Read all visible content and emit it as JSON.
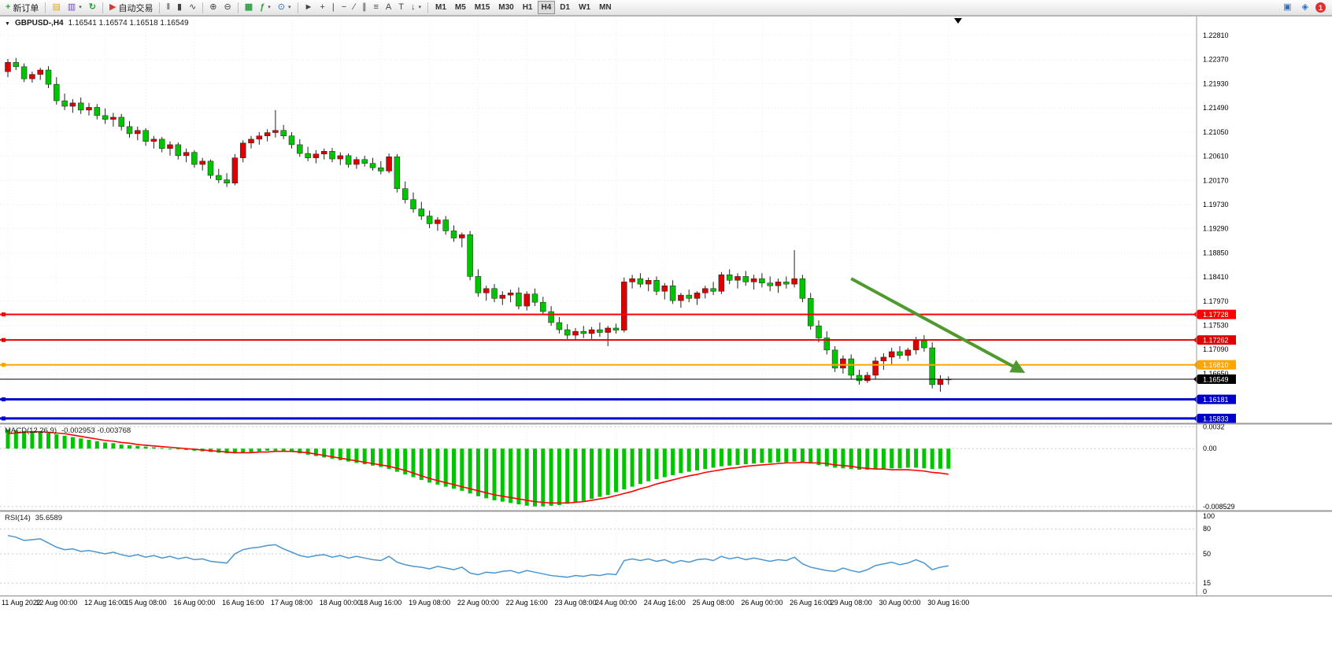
{
  "toolbar": {
    "new_order": "新订单",
    "autotrade": "自动交易",
    "timeframes": [
      "M1",
      "M5",
      "M15",
      "M30",
      "H1",
      "H4",
      "D1",
      "W1",
      "MN"
    ],
    "active_timeframe": "H4",
    "notification_count": "1"
  },
  "icons": {
    "chevron_down": "▾",
    "new_order": "+",
    "charts": "▤",
    "profiles": "▥",
    "refresh": "↻",
    "autotrade_play": "▶",
    "bar_chart": "‖",
    "candlestick": "▮",
    "line_chart": "∿",
    "zoom_in": "⊕",
    "zoom_out": "⊖",
    "tile_windows": "▦",
    "indicators": "ƒ",
    "clock": "⊙",
    "cursor": "►",
    "crosshair": "+",
    "vertical_line": "|",
    "horizontal_line": "−",
    "trendline": "∕",
    "channel": "∥",
    "fibonacci": "≡",
    "text": "A",
    "text_label": "T",
    "arrow_tool": "↓",
    "news": "▣",
    "community": "◈",
    "symbol_dropdown": "▼"
  },
  "chart_header": {
    "symbol": "GBPUSD-,H4",
    "ohlc": "1.16541 1.16574 1.16518 1.16549"
  },
  "macd_header": {
    "label": "MACD(12,26,9)",
    "values": "-0.002953 -0.003768"
  },
  "rsi_header": {
    "label": "RSI(14)",
    "value": "35.6589"
  },
  "chart_data": {
    "type": "candlestick",
    "title": "GBPUSD-,H4",
    "ohlc_display": [
      1.16541,
      1.16574,
      1.16518,
      1.16549
    ],
    "ylim": [
      1.1576,
      1.2314
    ],
    "price_axis_labels": [
      "1.22810",
      "1.22370",
      "1.21930",
      "1.21490",
      "1.21050",
      "1.20610",
      "1.20170",
      "1.19730",
      "1.19290",
      "1.18850",
      "1.18410",
      "1.17970",
      "1.17530",
      "1.17090",
      "1.16650"
    ],
    "time_labels": [
      "11 Aug 2022",
      "12 Aug 00:00",
      "12 Aug 16:00",
      "15 Aug 08:00",
      "16 Aug 00:00",
      "16 Aug 16:00",
      "17 Aug 08:00",
      "18 Aug 00:00",
      "18 Aug 16:00",
      "19 Aug 08:00",
      "22 Aug 00:00",
      "22 Aug 16:00",
      "23 Aug 08:00",
      "24 Aug 00:00",
      "24 Aug 16:00",
      "25 Aug 08:00",
      "26 Aug 00:00",
      "26 Aug 16:00",
      "29 Aug 08:00",
      "30 Aug 00:00",
      "30 Aug 16:00"
    ],
    "candles": [
      [
        1.2215,
        1.2238,
        1.2205,
        1.2232
      ],
      [
        1.2232,
        1.224,
        1.2218,
        1.2224
      ],
      [
        1.2224,
        1.223,
        1.2196,
        1.2202
      ],
      [
        1.2202,
        1.2215,
        1.2195,
        1.221
      ],
      [
        1.221,
        1.2222,
        1.22,
        1.2218
      ],
      [
        1.2218,
        1.2225,
        1.2185,
        1.2192
      ],
      [
        1.2192,
        1.2205,
        1.2155,
        1.2162
      ],
      [
        1.2162,
        1.2175,
        1.2145,
        1.2152
      ],
      [
        1.2152,
        1.2165,
        1.214,
        1.2158
      ],
      [
        1.2158,
        1.2168,
        1.2138,
        1.2145
      ],
      [
        1.2145,
        1.2158,
        1.2135,
        1.215
      ],
      [
        1.215,
        1.2156,
        1.2128,
        1.2135
      ],
      [
        1.2135,
        1.2148,
        1.212,
        1.2128
      ],
      [
        1.2128,
        1.214,
        1.2115,
        1.2132
      ],
      [
        1.2132,
        1.2138,
        1.2108,
        1.2115
      ],
      [
        1.2115,
        1.2125,
        1.2095,
        1.2102
      ],
      [
        1.2102,
        1.2115,
        1.209,
        1.2108
      ],
      [
        1.2108,
        1.2112,
        1.208,
        1.2088
      ],
      [
        1.2088,
        1.2098,
        1.2075,
        1.2092
      ],
      [
        1.2092,
        1.2096,
        1.2068,
        1.2075
      ],
      [
        1.2075,
        1.2088,
        1.2062,
        1.2082
      ],
      [
        1.2082,
        1.2086,
        1.2055,
        1.2062
      ],
      [
        1.2062,
        1.2075,
        1.205,
        1.2068
      ],
      [
        1.2068,
        1.2072,
        1.204,
        1.2046
      ],
      [
        1.2046,
        1.2058,
        1.2035,
        1.2052
      ],
      [
        1.2052,
        1.2055,
        1.202,
        1.2026
      ],
      [
        1.2026,
        1.2038,
        1.2012,
        1.2018
      ],
      [
        1.2018,
        1.203,
        1.2005,
        1.2012
      ],
      [
        1.2012,
        1.2065,
        1.2008,
        1.2058
      ],
      [
        1.2058,
        1.209,
        1.205,
        1.2085
      ],
      [
        1.2085,
        1.2098,
        1.2075,
        1.2092
      ],
      [
        1.2092,
        1.2105,
        1.2082,
        1.2098
      ],
      [
        1.2098,
        1.211,
        1.2088,
        1.2104
      ],
      [
        1.2104,
        1.2145,
        1.2095,
        1.2108
      ],
      [
        1.2108,
        1.2118,
        1.2092,
        1.2098
      ],
      [
        1.2098,
        1.2105,
        1.2075,
        1.2082
      ],
      [
        1.2082,
        1.2092,
        1.206,
        1.2066
      ],
      [
        1.2066,
        1.2078,
        1.2052,
        1.2058
      ],
      [
        1.2058,
        1.2072,
        1.2048,
        1.2065
      ],
      [
        1.2065,
        1.2075,
        1.2055,
        1.207
      ],
      [
        1.207,
        1.2076,
        1.205,
        1.2056
      ],
      [
        1.2056,
        1.2068,
        1.2045,
        1.2062
      ],
      [
        1.2062,
        1.2066,
        1.204,
        1.2046
      ],
      [
        1.2046,
        1.206,
        1.2038,
        1.2055
      ],
      [
        1.2055,
        1.2062,
        1.2042,
        1.2048
      ],
      [
        1.2048,
        1.2058,
        1.2035,
        1.204
      ],
      [
        1.204,
        1.2052,
        1.2028,
        1.2034
      ],
      [
        1.2034,
        1.2066,
        1.203,
        1.206
      ],
      [
        1.206,
        1.2065,
        1.1995,
        1.2002
      ],
      [
        1.2002,
        1.2015,
        1.1975,
        1.1982
      ],
      [
        1.1982,
        1.1995,
        1.1958,
        1.1965
      ],
      [
        1.1965,
        1.1978,
        1.1945,
        1.1952
      ],
      [
        1.1952,
        1.1962,
        1.193,
        1.1938
      ],
      [
        1.1938,
        1.195,
        1.1925,
        1.1945
      ],
      [
        1.1945,
        1.1952,
        1.1918,
        1.1925
      ],
      [
        1.1925,
        1.1935,
        1.1905,
        1.1912
      ],
      [
        1.1912,
        1.1922,
        1.1895,
        1.1918
      ],
      [
        1.1918,
        1.1925,
        1.1835,
        1.1842
      ],
      [
        1.1842,
        1.1855,
        1.1805,
        1.1812
      ],
      [
        1.1812,
        1.1825,
        1.1798,
        1.182
      ],
      [
        1.182,
        1.1828,
        1.1795,
        1.1802
      ],
      [
        1.1802,
        1.1815,
        1.179,
        1.1808
      ],
      [
        1.1808,
        1.1818,
        1.1795,
        1.1812
      ],
      [
        1.1812,
        1.1822,
        1.1782,
        1.1788
      ],
      [
        1.1788,
        1.1815,
        1.178,
        1.181
      ],
      [
        1.181,
        1.182,
        1.1788,
        1.1795
      ],
      [
        1.1795,
        1.1805,
        1.1772,
        1.1778
      ],
      [
        1.1778,
        1.1788,
        1.1752,
        1.1758
      ],
      [
        1.1758,
        1.1768,
        1.1738,
        1.1745
      ],
      [
        1.1745,
        1.1755,
        1.1728,
        1.1735
      ],
      [
        1.1735,
        1.1748,
        1.1725,
        1.1742
      ],
      [
        1.1742,
        1.1752,
        1.173,
        1.1738
      ],
      [
        1.1738,
        1.175,
        1.1728,
        1.1745
      ],
      [
        1.1745,
        1.1758,
        1.1732,
        1.174
      ],
      [
        1.174,
        1.1752,
        1.1715,
        1.1748
      ],
      [
        1.1748,
        1.1756,
        1.1738,
        1.1744
      ],
      [
        1.1744,
        1.184,
        1.174,
        1.1832
      ],
      [
        1.1832,
        1.1845,
        1.182,
        1.1838
      ],
      [
        1.1838,
        1.1848,
        1.1822,
        1.1828
      ],
      [
        1.1828,
        1.184,
        1.1815,
        1.1835
      ],
      [
        1.1835,
        1.1842,
        1.1808,
        1.1815
      ],
      [
        1.1815,
        1.183,
        1.18,
        1.1825
      ],
      [
        1.1825,
        1.1835,
        1.1792,
        1.1798
      ],
      [
        1.1798,
        1.1812,
        1.1785,
        1.1808
      ],
      [
        1.1808,
        1.1818,
        1.1795,
        1.1802
      ],
      [
        1.1802,
        1.1815,
        1.179,
        1.1812
      ],
      [
        1.1812,
        1.1825,
        1.1802,
        1.182
      ],
      [
        1.182,
        1.1832,
        1.1808,
        1.1815
      ],
      [
        1.1815,
        1.185,
        1.181,
        1.1845
      ],
      [
        1.1845,
        1.1855,
        1.1828,
        1.1835
      ],
      [
        1.1835,
        1.1848,
        1.182,
        1.1842
      ],
      [
        1.1842,
        1.1852,
        1.1825,
        1.1832
      ],
      [
        1.1832,
        1.1845,
        1.1818,
        1.1838
      ],
      [
        1.1838,
        1.1848,
        1.1822,
        1.183
      ],
      [
        1.183,
        1.1842,
        1.1815,
        1.1825
      ],
      [
        1.1825,
        1.1838,
        1.1812,
        1.1832
      ],
      [
        1.1832,
        1.1842,
        1.182,
        1.1828
      ],
      [
        1.1828,
        1.189,
        1.1822,
        1.1838
      ],
      [
        1.1838,
        1.1845,
        1.1795,
        1.1802
      ],
      [
        1.1802,
        1.1812,
        1.1745,
        1.1752
      ],
      [
        1.1752,
        1.1762,
        1.1722,
        1.173
      ],
      [
        1.173,
        1.1742,
        1.17,
        1.1708
      ],
      [
        1.1708,
        1.1715,
        1.1668,
        1.1675
      ],
      [
        1.1675,
        1.1698,
        1.1665,
        1.1692
      ],
      [
        1.1692,
        1.17,
        1.1655,
        1.1662
      ],
      [
        1.1662,
        1.1672,
        1.1645,
        1.1652
      ],
      [
        1.1652,
        1.1668,
        1.1648,
        1.1662
      ],
      [
        1.1662,
        1.1695,
        1.1655,
        1.1688
      ],
      [
        1.1688,
        1.1702,
        1.1672,
        1.1695
      ],
      [
        1.1695,
        1.1712,
        1.1682,
        1.1705
      ],
      [
        1.1705,
        1.1715,
        1.1692,
        1.1698
      ],
      [
        1.1698,
        1.1712,
        1.1688,
        1.1708
      ],
      [
        1.1708,
        1.1732,
        1.17,
        1.1725
      ],
      [
        1.1725,
        1.1735,
        1.1705,
        1.1712
      ],
      [
        1.1712,
        1.1722,
        1.1638,
        1.1645
      ],
      [
        1.1645,
        1.1662,
        1.1632,
        1.1655
      ],
      [
        1.1655,
        1.166,
        1.1645,
        1.16549
      ]
    ],
    "hlines": [
      {
        "price": 1.17728,
        "label": "1.17728",
        "color": "#FF0000",
        "width": 2
      },
      {
        "price": 1.17262,
        "label": "1.17262",
        "color": "#E00000",
        "width": 2
      },
      {
        "price": 1.1681,
        "label": "1.16810",
        "color": "#FFA500",
        "width": 2
      },
      {
        "price": 1.16549,
        "label": "1.16549",
        "color": "#000000",
        "width": 1
      },
      {
        "price": 1.16181,
        "label": "1.16181",
        "color": "#0000CC",
        "width": 3
      },
      {
        "price": 1.15833,
        "label": "1.15833",
        "color": "#0000CC",
        "width": 3
      }
    ],
    "trend_arrow": {
      "from_index": 104,
      "from_price": 1.1838,
      "to_index": 125,
      "to_price": 1.167,
      "color": "#4E9A2E"
    },
    "colors": {
      "up": "#DD0000",
      "down": "#00C400",
      "wick": "#222222",
      "grid": "#ECECEC",
      "macd_hist": "#00C400",
      "macd_signal": "#FF0000",
      "rsi_line": "#4A96D2"
    },
    "macd": {
      "label": "MACD(12,26,9)",
      "values_text": "-0.002953 -0.003768",
      "range": [
        -0.009,
        0.0035
      ],
      "axis_labels": [
        {
          "v": 0.0032,
          "t": "0.0032"
        },
        {
          "v": 0,
          "t": "0.00"
        },
        {
          "v": -0.008529,
          "t": "-0.008529"
        }
      ],
      "hist": [
        0.0028,
        0.0027,
        0.0026,
        0.0025,
        0.0024,
        0.0023,
        0.0021,
        0.0019,
        0.0017,
        0.0015,
        0.0013,
        0.0011,
        0.0009,
        0.0008,
        0.0006,
        0.0005,
        0.0004,
        0.0003,
        0.0002,
        0.0001,
        0.0,
        -0.0001,
        -0.0002,
        -0.0003,
        -0.0004,
        -0.0005,
        -0.0006,
        -0.0007,
        -0.0007,
        -0.0006,
        -0.0005,
        -0.0004,
        -0.0003,
        -0.0003,
        -0.0004,
        -0.0005,
        -0.0007,
        -0.0009,
        -0.0011,
        -0.0013,
        -0.0015,
        -0.0017,
        -0.0019,
        -0.0021,
        -0.0023,
        -0.0025,
        -0.0027,
        -0.003,
        -0.0034,
        -0.0038,
        -0.0042,
        -0.0046,
        -0.005,
        -0.0053,
        -0.0056,
        -0.0059,
        -0.0062,
        -0.0066,
        -0.007,
        -0.0073,
        -0.0076,
        -0.0078,
        -0.008,
        -0.0082,
        -0.0084,
        -0.0085,
        -0.0085,
        -0.0084,
        -0.0083,
        -0.0081,
        -0.0079,
        -0.0077,
        -0.0074,
        -0.0071,
        -0.0068,
        -0.0064,
        -0.006,
        -0.0056,
        -0.0052,
        -0.0048,
        -0.0045,
        -0.0042,
        -0.0039,
        -0.0036,
        -0.0034,
        -0.0032,
        -0.003,
        -0.0028,
        -0.0026,
        -0.0025,
        -0.0024,
        -0.0023,
        -0.0022,
        -0.0021,
        -0.0021,
        -0.002,
        -0.002,
        -0.0019,
        -0.002,
        -0.0022,
        -0.0024,
        -0.0026,
        -0.0028,
        -0.0029,
        -0.003,
        -0.0031,
        -0.0031,
        -0.003,
        -0.003,
        -0.0029,
        -0.0029,
        -0.0028,
        -0.0028,
        -0.0029,
        -0.003,
        -0.00295,
        -0.002953
      ],
      "signal": [
        0.0022,
        0.0023,
        0.0024,
        0.0025,
        0.0025,
        0.0024,
        0.0023,
        0.0022,
        0.002,
        0.0018,
        0.0016,
        0.0014,
        0.0012,
        0.0011,
        0.0009,
        0.0008,
        0.0006,
        0.0005,
        0.0004,
        0.0003,
        0.0002,
        0.0001,
        0.0,
        -0.0001,
        -0.0002,
        -0.0003,
        -0.0004,
        -0.0005,
        -0.0006,
        -0.0006,
        -0.0006,
        -0.0005,
        -0.0005,
        -0.0004,
        -0.0004,
        -0.0004,
        -0.0005,
        -0.0006,
        -0.0008,
        -0.001,
        -0.0012,
        -0.0014,
        -0.0016,
        -0.0018,
        -0.002,
        -0.0022,
        -0.0024,
        -0.0026,
        -0.0029,
        -0.0032,
        -0.0036,
        -0.004,
        -0.0044,
        -0.0047,
        -0.005,
        -0.0053,
        -0.0056,
        -0.0059,
        -0.0062,
        -0.0065,
        -0.0068,
        -0.007,
        -0.0072,
        -0.0074,
        -0.0076,
        -0.0078,
        -0.0079,
        -0.008,
        -0.008,
        -0.008,
        -0.0079,
        -0.0078,
        -0.0076,
        -0.0074,
        -0.0072,
        -0.0069,
        -0.0066,
        -0.0063,
        -0.0059,
        -0.0056,
        -0.0052,
        -0.0049,
        -0.0046,
        -0.0043,
        -0.004,
        -0.0038,
        -0.0035,
        -0.0033,
        -0.0031,
        -0.0029,
        -0.0028,
        -0.0026,
        -0.0025,
        -0.0024,
        -0.0023,
        -0.0022,
        -0.0021,
        -0.0021,
        -0.002,
        -0.0021,
        -0.0021,
        -0.0022,
        -0.0024,
        -0.0025,
        -0.0026,
        -0.0028,
        -0.0029,
        -0.003,
        -0.003,
        -0.0031,
        -0.0031,
        -0.0031,
        -0.0032,
        -0.0033,
        -0.0035,
        -0.0036,
        -0.003768
      ]
    },
    "rsi": {
      "label": "RSI(14)",
      "value_text": "35.6589",
      "range": [
        0,
        100
      ],
      "levels": [
        15,
        50,
        80
      ],
      "axis_labels": [
        {
          "v": 100,
          "t": "100"
        },
        {
          "v": 80,
          "t": "80"
        },
        {
          "v": 50,
          "t": "50"
        },
        {
          "v": 15,
          "t": "15"
        },
        {
          "v": 0,
          "t": "0"
        }
      ],
      "values": [
        72,
        70,
        66,
        67,
        68,
        63,
        58,
        55,
        56,
        53,
        54,
        52,
        50,
        52,
        49,
        47,
        49,
        46,
        48,
        45,
        47,
        44,
        46,
        43,
        44,
        41,
        40,
        39,
        50,
        55,
        57,
        58,
        60,
        61,
        56,
        52,
        48,
        46,
        48,
        49,
        46,
        48,
        45,
        47,
        45,
        43,
        42,
        47,
        40,
        37,
        35,
        34,
        32,
        35,
        33,
        31,
        34,
        27,
        25,
        28,
        27,
        29,
        30,
        27,
        30,
        28,
        26,
        24,
        23,
        22,
        24,
        23,
        25,
        24,
        26,
        25,
        42,
        44,
        42,
        44,
        41,
        43,
        39,
        42,
        40,
        43,
        44,
        42,
        47,
        44,
        46,
        43,
        45,
        43,
        41,
        43,
        42,
        46,
        38,
        34,
        32,
        30,
        29,
        33,
        30,
        28,
        31,
        36,
        38,
        40,
        37,
        39,
        43,
        39,
        31,
        34,
        35.6589
      ]
    }
  }
}
